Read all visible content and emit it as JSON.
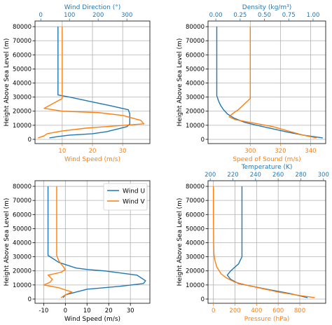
{
  "colors": {
    "blue": "#1f77b4",
    "orange": "#ff7f0e",
    "grid": "#b0b0b0",
    "axis": "#000000"
  },
  "chart_data": [
    {
      "id": "wind-speed-direction",
      "type": "line",
      "grid": true,
      "ylabel": "Height Above Sea Level (m)",
      "ylim": [
        -3000,
        84000
      ],
      "yticks": [
        0,
        10000,
        20000,
        30000,
        40000,
        50000,
        60000,
        70000,
        80000
      ],
      "bottom_axis": {
        "label": "Wind Speed (m/s)",
        "label_color": "#ff7f0e",
        "xlim": [
          1,
          39
        ],
        "ticks": [
          10,
          20,
          30
        ]
      },
      "top_axis": {
        "label": "Wind Direction (°)",
        "label_color": "#1f77b4",
        "xlim": [
          -20,
          380
        ],
        "ticks": [
          0,
          100,
          200,
          300
        ]
      },
      "series": [
        {
          "color": "#1f77b4",
          "axis": "top",
          "points": [
            [
              30,
              1000
            ],
            [
              60,
              2000
            ],
            [
              100,
              3000
            ],
            [
              180,
              4000
            ],
            [
              230,
              5500
            ],
            [
              260,
              7000
            ],
            [
              300,
              9000
            ],
            [
              310,
              11000
            ],
            [
              310,
              14000
            ],
            [
              310,
              18000
            ],
            [
              305,
              21000
            ],
            [
              240,
              24000
            ],
            [
              170,
              27000
            ],
            [
              100,
              30000
            ],
            [
              60,
              31500
            ],
            [
              60,
              40000
            ],
            [
              60,
              60000
            ],
            [
              60,
              80000
            ]
          ]
        },
        {
          "color": "#ff7f0e",
          "axis": "bottom",
          "points": [
            [
              2,
              1000
            ],
            [
              4,
              2500
            ],
            [
              5,
              4000
            ],
            [
              10,
              6000
            ],
            [
              18,
              8000
            ],
            [
              37,
              11000
            ],
            [
              36,
              13500
            ],
            [
              30,
              17000
            ],
            [
              22,
              19000
            ],
            [
              10,
              20000
            ],
            [
              4,
              22000
            ],
            [
              10,
              29000
            ],
            [
              10,
              32000
            ],
            [
              10,
              40000
            ],
            [
              10,
              60000
            ],
            [
              10,
              80000
            ]
          ]
        }
      ]
    },
    {
      "id": "speed-of-sound-density",
      "type": "line",
      "grid": true,
      "ylabel": "Height Above Sea Level (m)",
      "ylim": [
        -3000,
        84000
      ],
      "yticks": [
        0,
        10000,
        20000,
        30000,
        40000,
        50000,
        60000,
        70000,
        80000
      ],
      "bottom_axis": {
        "label": "Speed of Sound (m/s)",
        "label_color": "#ff7f0e",
        "xlim": [
          272,
          350
        ],
        "ticks": [
          300,
          320,
          340
        ]
      },
      "top_axis": {
        "label": "Density (kg/m³)",
        "label_color": "#1f77b4",
        "xlim": [
          -0.08,
          1.13
        ],
        "ticks": [
          0.0,
          0.25,
          0.5,
          0.75,
          1.0
        ],
        "tick_labels": [
          "0.00",
          "0.25",
          "0.50",
          "0.75",
          "1.00"
        ]
      },
      "series": [
        {
          "color": "#1f77b4",
          "axis": "top",
          "points": [
            [
              1.1,
              1000
            ],
            [
              0.9,
              3000
            ],
            [
              0.75,
              5000
            ],
            [
              0.55,
              8000
            ],
            [
              0.42,
              10000
            ],
            [
              0.3,
              12000
            ],
            [
              0.19,
              15000
            ],
            [
              0.12,
              18000
            ],
            [
              0.08,
              21000
            ],
            [
              0.05,
              24000
            ],
            [
              0.03,
              27000
            ],
            [
              0.01,
              31000
            ],
            [
              0.01,
              40000
            ],
            [
              0.01,
              60000
            ],
            [
              0.01,
              80000
            ]
          ]
        },
        {
          "color": "#ff7f0e",
          "axis": "bottom",
          "points": [
            [
              344,
              1000
            ],
            [
              335,
              3000
            ],
            [
              325,
              6000
            ],
            [
              315,
              9000
            ],
            [
              300,
              12000
            ],
            [
              290,
              14000
            ],
            [
              286,
              16000
            ],
            [
              288,
              18000
            ],
            [
              292,
              21000
            ],
            [
              296,
              25000
            ],
            [
              300,
              29000
            ],
            [
              300,
              32000
            ],
            [
              300,
              40000
            ],
            [
              300,
              60000
            ],
            [
              300,
              80000
            ]
          ]
        }
      ]
    },
    {
      "id": "wind-components",
      "type": "line",
      "grid": true,
      "xlabel": "Wind Speed (m/s)",
      "ylabel": "Height Above Sea Level (m)",
      "xlim": [
        -14,
        39
      ],
      "ylim": [
        -3000,
        84000
      ],
      "xticks": [
        -10,
        0,
        10,
        20,
        30
      ],
      "yticks": [
        0,
        10000,
        20000,
        30000,
        40000,
        50000,
        60000,
        70000,
        80000
      ],
      "legend": "top-right",
      "series": [
        {
          "name": "Wind U",
          "color": "#1f77b4",
          "points": [
            [
              -1,
              1000
            ],
            [
              0,
              3000
            ],
            [
              5,
              5000
            ],
            [
              10,
              7000
            ],
            [
              25,
              9000
            ],
            [
              36,
              11000
            ],
            [
              37,
              13000
            ],
            [
              33,
              17000
            ],
            [
              18,
              20000
            ],
            [
              10,
              21000
            ],
            [
              5,
              22000
            ],
            [
              -3,
              26000
            ],
            [
              -8,
              31000
            ],
            [
              -8,
              40000
            ],
            [
              -8,
              60000
            ],
            [
              -8,
              80000
            ]
          ]
        },
        {
          "name": "Wind V",
          "color": "#ff7f0e",
          "points": [
            [
              -2,
              1000
            ],
            [
              -1,
              2000
            ],
            [
              0,
              3000
            ],
            [
              3,
              5000
            ],
            [
              -3,
              8000
            ],
            [
              -10,
              10000
            ],
            [
              -7,
              12000
            ],
            [
              -6,
              14000
            ],
            [
              -8,
              17000
            ],
            [
              -2,
              19000
            ],
            [
              0,
              21000
            ],
            [
              -3,
              27000
            ],
            [
              -4,
              31000
            ],
            [
              -4,
              40000
            ],
            [
              -4,
              60000
            ],
            [
              -4,
              80000
            ]
          ]
        }
      ]
    },
    {
      "id": "pressure-temperature",
      "type": "line",
      "grid": true,
      "ylabel": "Height Above Sea Level (m)",
      "ylim": [
        -3000,
        84000
      ],
      "yticks": [
        0,
        10000,
        20000,
        30000,
        40000,
        50000,
        60000,
        70000,
        80000
      ],
      "bottom_axis": {
        "label": "Pressure (hPa)",
        "label_color": "#ff7f0e",
        "xlim": [
          -50,
          1040
        ],
        "ticks": [
          0,
          200,
          400,
          600,
          800
        ]
      },
      "top_axis": {
        "label": "Temperature (K)",
        "label_color": "#1f77b4",
        "xlim": [
          198,
          302
        ],
        "ticks": [
          200,
          220,
          240,
          260,
          280,
          300
        ]
      },
      "series": [
        {
          "color": "#1f77b4",
          "axis": "top",
          "points": [
            [
              286,
              1000
            ],
            [
              270,
              4000
            ],
            [
              250,
              7000
            ],
            [
              225,
              11000
            ],
            [
              218,
              14000
            ],
            [
              215,
              17000
            ],
            [
              218,
              20000
            ],
            [
              225,
              25000
            ],
            [
              228,
              30000
            ],
            [
              228,
              32000
            ],
            [
              228,
              40000
            ],
            [
              228,
              60000
            ],
            [
              228,
              80000
            ]
          ]
        },
        {
          "color": "#ff7f0e",
          "axis": "bottom",
          "points": [
            [
              940,
              1000
            ],
            [
              800,
              2500
            ],
            [
              600,
              5000
            ],
            [
              450,
              7500
            ],
            [
              300,
              10000
            ],
            [
              200,
              12000
            ],
            [
              120,
              15000
            ],
            [
              70,
              18000
            ],
            [
              30,
              23000
            ],
            [
              12,
              28000
            ],
            [
              5,
              32000
            ],
            [
              2,
              40000
            ],
            [
              0,
              60000
            ],
            [
              0,
              80000
            ]
          ]
        }
      ]
    }
  ]
}
